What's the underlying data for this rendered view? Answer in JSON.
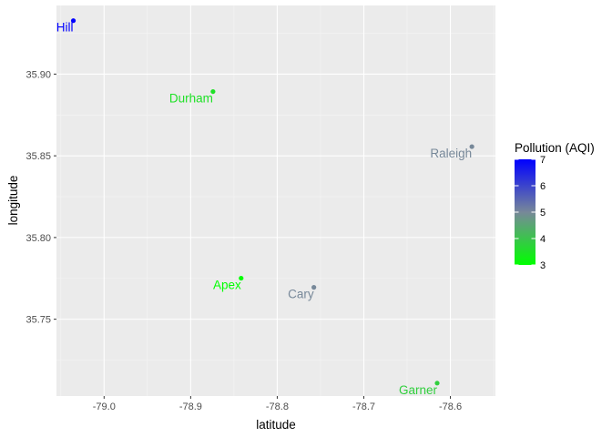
{
  "chart_data": {
    "type": "scatter",
    "title": "",
    "xlabel": "latitude",
    "ylabel": "longitude",
    "xlim": [
      -79.055,
      -78.548
    ],
    "ylim": [
      35.703,
      35.942
    ],
    "x_ticks": [
      -79.0,
      -78.9,
      -78.8,
      -78.7,
      -78.6
    ],
    "x_tick_labels": [
      "-79.0",
      "-78.9",
      "-78.8",
      "-78.7",
      "-78.6"
    ],
    "y_ticks": [
      35.75,
      35.8,
      35.85,
      35.9
    ],
    "y_tick_labels": [
      "35.75",
      "35.80",
      "35.85",
      "35.90"
    ],
    "grid": true,
    "legend": {
      "title": "Pollution (AQI)",
      "placement": "right",
      "type": "colorbar",
      "range": [
        3,
        7
      ],
      "ticks": [
        3,
        4,
        5,
        6,
        7
      ],
      "tick_labels": [
        "3",
        "4",
        "5",
        "6",
        "7"
      ],
      "low_color": "#00ff00",
      "high_color": "#0000ff"
    },
    "points": [
      {
        "label": "Hill",
        "x": -79.0355,
        "y": 35.9327,
        "aqi": 7
      },
      {
        "label": "Durham",
        "x": -78.8742,
        "y": 35.8893,
        "aqi": 3.5
      },
      {
        "label": "Raleigh",
        "x": -78.5752,
        "y": 35.8556,
        "aqi": 5
      },
      {
        "label": "Apex",
        "x": -78.8417,
        "y": 35.7751,
        "aqi": 3
      },
      {
        "label": "Cary",
        "x": -78.7577,
        "y": 35.7695,
        "aqi": 5
      },
      {
        "label": "Garner",
        "x": -78.6153,
        "y": 35.7109,
        "aqi": 3.8
      }
    ]
  }
}
